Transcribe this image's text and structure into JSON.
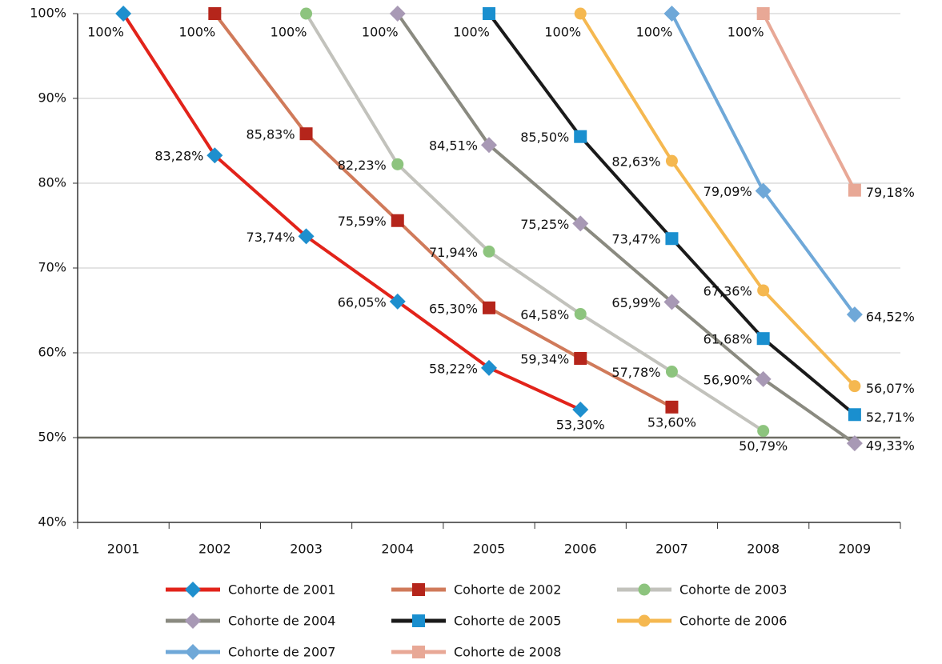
{
  "chart_data": {
    "type": "line",
    "categories": [
      "2001",
      "2002",
      "2003",
      "2004",
      "2005",
      "2006",
      "2007",
      "2008",
      "2009"
    ],
    "ylim": [
      40,
      100
    ],
    "yticks": [
      {
        "value": 40,
        "label": "40%"
      },
      {
        "value": 50,
        "label": "50%"
      },
      {
        "value": 60,
        "label": "60%"
      },
      {
        "value": 70,
        "label": "70%"
      },
      {
        "value": 80,
        "label": "80%"
      },
      {
        "value": 90,
        "label": "90%"
      },
      {
        "value": 100,
        "label": "100%"
      }
    ],
    "grid": true,
    "reference_line": 50,
    "series": [
      {
        "name": "Cohorte de 2001",
        "color": "#e2231a",
        "marker": "diamond",
        "marker_color": "#1e8fce",
        "values": [
          100,
          83.28,
          73.74,
          66.05,
          58.22,
          53.3,
          null,
          null,
          null
        ],
        "value_labels": [
          "100%",
          "83,28%",
          "73,74%",
          "66,05%",
          "58,22%",
          "53,30%",
          null,
          null,
          null
        ]
      },
      {
        "name": "Cohorte de 2002",
        "color": "#d07a5a",
        "marker": "square",
        "marker_color": "#b5251b",
        "values": [
          null,
          100,
          85.83,
          75.59,
          65.3,
          59.34,
          53.6,
          null,
          null
        ],
        "value_labels": [
          null,
          "100%",
          "85,83%",
          "75,59%",
          "65,30%",
          "59,34%",
          "53,60%",
          null,
          null
        ]
      },
      {
        "name": "Cohorte de 2003",
        "color": "#c2c2bc",
        "marker": "circle",
        "marker_color": "#8dc47e",
        "values": [
          null,
          null,
          100,
          82.23,
          71.94,
          64.58,
          57.78,
          50.79,
          null
        ],
        "value_labels": [
          null,
          null,
          "100%",
          "82,23%",
          "71,94%",
          "64,58%",
          "57,78%",
          "50,79%",
          null
        ]
      },
      {
        "name": "Cohorte de 2004",
        "color": "#8a8a80",
        "marker": "diamond",
        "marker_color": "#a899b5",
        "values": [
          null,
          null,
          null,
          100,
          84.51,
          75.25,
          65.99,
          56.9,
          49.33
        ],
        "value_labels": [
          null,
          null,
          null,
          "100%",
          "84,51%",
          "75,25%",
          "65,99%",
          "56,90%",
          "49,33%"
        ]
      },
      {
        "name": "Cohorte de 2005",
        "color": "#1a1a1a",
        "marker": "square",
        "marker_color": "#1a8fcf",
        "values": [
          null,
          null,
          null,
          null,
          100,
          85.5,
          73.47,
          61.68,
          52.71
        ],
        "value_labels": [
          null,
          null,
          null,
          null,
          "100%",
          "85,50%",
          "73,47%",
          "61,68%",
          "52,71%"
        ]
      },
      {
        "name": "Cohorte de 2006",
        "color": "#f5b850",
        "marker": "circle",
        "marker_color": "#f5b850",
        "values": [
          null,
          null,
          null,
          null,
          null,
          100,
          82.63,
          67.36,
          56.07
        ],
        "value_labels": [
          null,
          null,
          null,
          null,
          null,
          "100%",
          "82,63%",
          "67,36%",
          "56,07%"
        ]
      },
      {
        "name": "Cohorte de 2007",
        "color": "#6fa8d8",
        "marker": "diamond",
        "marker_color": "#6fa8d8",
        "values": [
          null,
          null,
          null,
          null,
          null,
          null,
          100,
          79.09,
          64.52
        ],
        "value_labels": [
          null,
          null,
          null,
          null,
          null,
          null,
          "100%",
          "79,09%",
          "64,52%"
        ]
      },
      {
        "name": "Cohorte de 2008",
        "color": "#e8a896",
        "marker": "square",
        "marker_color": "#e8a896",
        "values": [
          null,
          null,
          null,
          null,
          null,
          null,
          null,
          100,
          79.18
        ],
        "value_labels": [
          null,
          null,
          null,
          null,
          null,
          null,
          null,
          "100%",
          "79,18%"
        ]
      }
    ]
  }
}
